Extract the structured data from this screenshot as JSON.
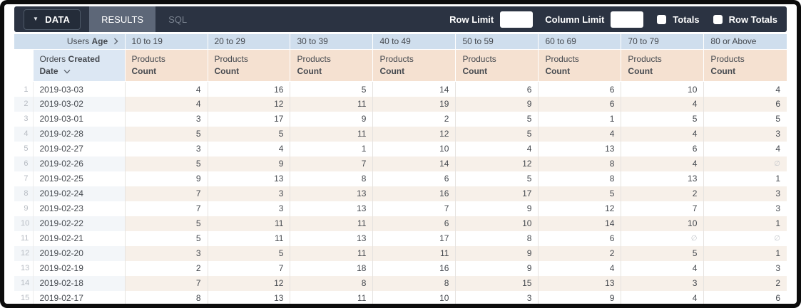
{
  "toolbar": {
    "data_tab": "DATA",
    "results_tab": "RESULTS",
    "sql_tab": "SQL",
    "row_limit_label": "Row Limit",
    "row_limit_value": "",
    "column_limit_label": "Column Limit",
    "column_limit_value": "",
    "totals_label": "Totals",
    "totals_checked": false,
    "row_totals_label": "Row Totals",
    "row_totals_checked": false
  },
  "table": {
    "pivot_field": {
      "view": "Users",
      "field": "Age"
    },
    "pivot_values": [
      "10 to 19",
      "20 to 29",
      "30 to 39",
      "40 to 49",
      "50 to 59",
      "60 to 69",
      "70 to 79",
      "80 or Above"
    ],
    "dimension_field": {
      "view": "Orders",
      "field": "Created Date"
    },
    "measure_field": {
      "view": "Products",
      "field": "Count"
    },
    "null_symbol": "∅",
    "rows": [
      {
        "n": "1",
        "date": "2019-03-03",
        "values": [
          4,
          16,
          5,
          14,
          6,
          6,
          10,
          4
        ]
      },
      {
        "n": "2",
        "date": "2019-03-02",
        "values": [
          4,
          12,
          11,
          19,
          9,
          6,
          4,
          6
        ]
      },
      {
        "n": "3",
        "date": "2019-03-01",
        "values": [
          3,
          17,
          9,
          2,
          5,
          1,
          5,
          5
        ]
      },
      {
        "n": "4",
        "date": "2019-02-28",
        "values": [
          5,
          5,
          11,
          12,
          5,
          4,
          4,
          3
        ]
      },
      {
        "n": "5",
        "date": "2019-02-27",
        "values": [
          3,
          4,
          1,
          10,
          4,
          13,
          6,
          4
        ]
      },
      {
        "n": "6",
        "date": "2019-02-26",
        "values": [
          5,
          9,
          7,
          14,
          12,
          8,
          4,
          null
        ]
      },
      {
        "n": "7",
        "date": "2019-02-25",
        "values": [
          9,
          13,
          8,
          6,
          5,
          8,
          13,
          1
        ]
      },
      {
        "n": "8",
        "date": "2019-02-24",
        "values": [
          7,
          3,
          13,
          16,
          17,
          5,
          2,
          3
        ]
      },
      {
        "n": "9",
        "date": "2019-02-23",
        "values": [
          7,
          3,
          13,
          7,
          9,
          12,
          7,
          3
        ]
      },
      {
        "n": "10",
        "date": "2019-02-22",
        "values": [
          5,
          11,
          11,
          6,
          10,
          14,
          10,
          1
        ]
      },
      {
        "n": "11",
        "date": "2019-02-21",
        "values": [
          5,
          11,
          13,
          17,
          8,
          6,
          null,
          null
        ]
      },
      {
        "n": "12",
        "date": "2019-02-20",
        "values": [
          3,
          5,
          11,
          11,
          9,
          2,
          5,
          1
        ]
      },
      {
        "n": "13",
        "date": "2019-02-19",
        "values": [
          2,
          7,
          18,
          16,
          9,
          4,
          4,
          3
        ]
      },
      {
        "n": "14",
        "date": "2019-02-18",
        "values": [
          7,
          12,
          8,
          8,
          15,
          13,
          3,
          2
        ]
      },
      {
        "n": "15",
        "date": "2019-02-17",
        "values": [
          8,
          13,
          11,
          10,
          3,
          9,
          4,
          6
        ]
      }
    ]
  },
  "icons": {
    "data_tab_caret": "caret-down-icon",
    "pivot_chevron": "chevron-right-icon",
    "sort_indicator": "chevron-down-icon"
  },
  "colors": {
    "toolbar_bg": "#2b3342",
    "data_tab_bg": "#242c39",
    "data_tab_border": "#4e5968",
    "results_tab_bg": "#5d6778",
    "sql_text": "#79828f",
    "header_blue": "#cfdeed",
    "dim_blue": "#dce7f3",
    "header_peach": "#f5e1d1",
    "stripe_cool": "#f3f6f9",
    "stripe_warm": "#f7f0e9"
  }
}
